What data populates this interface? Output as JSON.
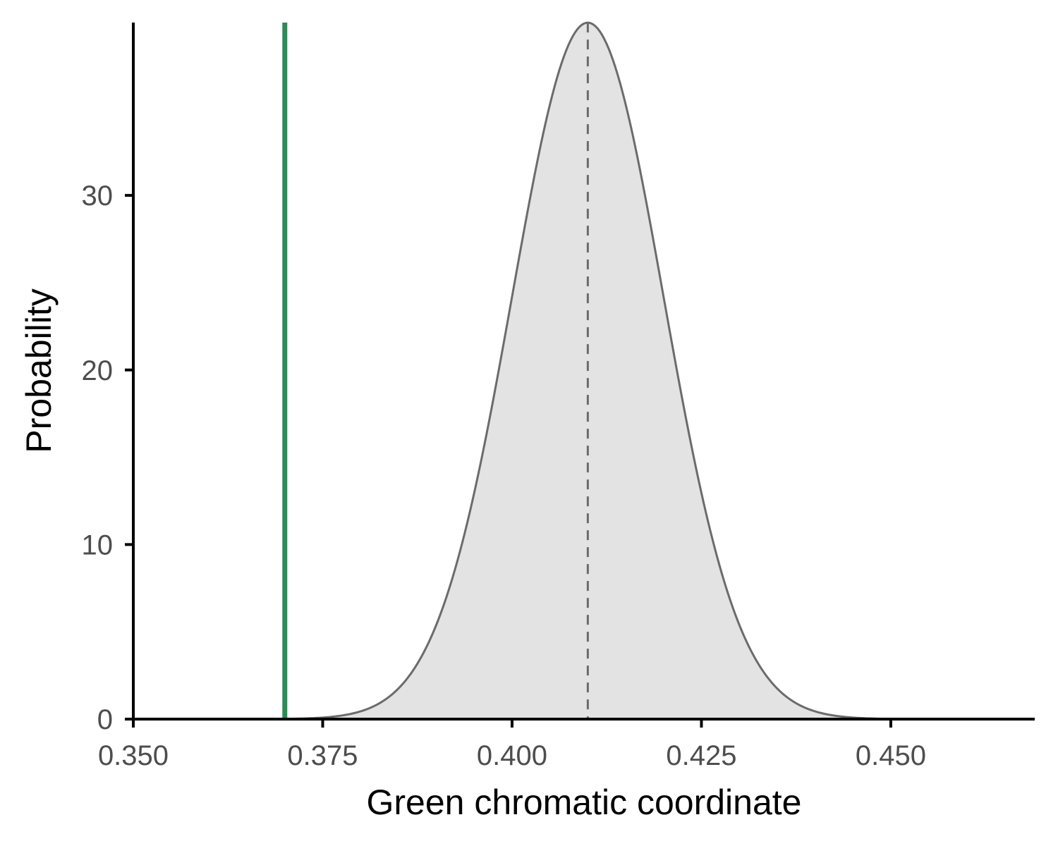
{
  "chart_data": {
    "type": "area",
    "xlabel": "Green chromatic coordinate",
    "ylabel": "Probability",
    "xlim": [
      0.35,
      0.469
    ],
    "ylim": [
      0,
      39.9
    ],
    "x_ticks": [
      0.35,
      0.375,
      0.4,
      0.425,
      0.45
    ],
    "x_tick_labels": [
      "0.350",
      "0.375",
      "0.400",
      "0.425",
      "0.450"
    ],
    "y_ticks": [
      0,
      10,
      20,
      30
    ],
    "y_tick_labels": [
      "0",
      "10",
      "20",
      "30"
    ],
    "grid": false,
    "legend": "none",
    "density": {
      "distribution": "normal",
      "mean": 0.41,
      "sd": 0.01,
      "x_range": [
        0.35,
        0.469
      ],
      "fill_color": "#e3e3e3",
      "line_color": "#6b6b6b"
    },
    "reference_lines": [
      {
        "x": 0.41,
        "style": "dashed",
        "color": "#6b6b6b"
      },
      {
        "x": 0.37,
        "style": "solid",
        "color": "#2e8b57"
      }
    ]
  }
}
